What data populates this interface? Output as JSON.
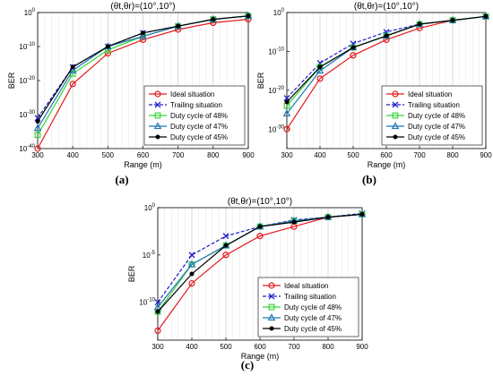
{
  "figure": {
    "captions": [
      "(a)",
      "(b)",
      "(c)"
    ]
  },
  "colors": {
    "Ideal situation": "#e31a1c",
    "Trailing situation": "#1f1fcc",
    "Duty cycle of 48%": "#39d339",
    "Duty cycle of 47%": "#1f78b4",
    "Duty cycle of 45%": "#000000"
  },
  "chart_data": [
    {
      "type": "line",
      "title": "(θt,θr)=(10°,10°)",
      "xlabel": "Range (m)",
      "ylabel": "BER",
      "x": [
        300,
        400,
        500,
        600,
        700,
        800,
        900
      ],
      "xlim": [
        300,
        900
      ],
      "yscale": "log",
      "ylim": [
        1e-40,
        1
      ],
      "yticks": [
        "10^-40",
        "10^-30",
        "10^-20",
        "10^-10",
        "10^0"
      ],
      "grid": "vertical minor",
      "legend": "bottom-right",
      "series": [
        {
          "name": "Ideal situation",
          "marker": "circle",
          "values": [
            1e-40,
            1e-21,
            1e-12,
            1e-08,
            1e-05,
            0.001,
            0.01
          ]
        },
        {
          "name": "Trailing situation",
          "marker": "x",
          "values": [
            1e-31,
            1e-16,
            1e-10,
            1e-06,
            0.0001,
            0.01,
            0.1
          ]
        },
        {
          "name": "Duty cycle of 48%",
          "marker": "square",
          "values": [
            1e-36,
            1e-18,
            1e-11,
            1e-07,
            0.0001,
            0.01,
            0.1
          ]
        },
        {
          "name": "Duty cycle of 47%",
          "marker": "triangle",
          "values": [
            1e-34,
            1e-17,
            1e-10,
            1e-07,
            0.0001,
            0.01,
            0.1
          ]
        },
        {
          "name": "Duty cycle of 45%",
          "marker": "dot",
          "values": [
            1e-32,
            1e-16,
            1e-10,
            1e-06,
            0.0001,
            0.01,
            0.1
          ]
        }
      ]
    },
    {
      "type": "line",
      "title": "(θt,θr)=(10°,10°)",
      "xlabel": "Range (m)",
      "ylabel": "BER",
      "x": [
        300,
        400,
        500,
        600,
        700,
        800,
        900
      ],
      "xlim": [
        300,
        900
      ],
      "yscale": "log",
      "ylim": [
        1e-35,
        1
      ],
      "yticks": [
        "10^-30",
        "10^-20",
        "10^-10",
        "10^0"
      ],
      "grid": "vertical minor",
      "legend": "bottom-right",
      "series": [
        {
          "name": "Ideal situation",
          "marker": "circle",
          "values": [
            1e-30,
            1e-17,
            1e-11,
            1e-07,
            0.0001,
            0.01,
            0.1
          ]
        },
        {
          "name": "Trailing situation",
          "marker": "x",
          "values": [
            1e-22,
            1e-13,
            1e-08,
            1e-05,
            0.001,
            0.01,
            0.1
          ]
        },
        {
          "name": "Duty cycle of 48%",
          "marker": "square",
          "values": [
            1e-24,
            1e-14,
            1e-09,
            1e-06,
            0.001,
            0.01,
            0.1
          ]
        },
        {
          "name": "Duty cycle of 47%",
          "marker": "triangle",
          "values": [
            1e-26,
            1e-15,
            1e-09,
            1e-06,
            0.001,
            0.01,
            0.1
          ]
        },
        {
          "name": "Duty cycle of 45%",
          "marker": "dot",
          "values": [
            1e-23,
            1e-14,
            1e-09,
            1e-06,
            0.001,
            0.01,
            0.1
          ]
        }
      ]
    },
    {
      "type": "line",
      "title": "(θt,θr)=(10°,10°)",
      "xlabel": "Range (m)",
      "ylabel": "BER",
      "x": [
        300,
        400,
        500,
        600,
        700,
        800,
        900
      ],
      "xlim": [
        300,
        900
      ],
      "yscale": "log",
      "ylim": [
        1e-14,
        1
      ],
      "yticks": [
        "10^-10",
        "10^-5",
        "10^0"
      ],
      "grid": "vertical minor",
      "legend": "bottom-right",
      "series": [
        {
          "name": "Ideal situation",
          "marker": "circle",
          "values": [
            1e-13,
            1e-08,
            1e-05,
            0.001,
            0.01,
            0.1,
            0.2
          ]
        },
        {
          "name": "Trailing situation",
          "marker": "x",
          "values": [
            1e-10,
            1e-05,
            0.001,
            0.01,
            0.05,
            0.1,
            0.25
          ]
        },
        {
          "name": "Duty cycle of 48%",
          "marker": "square",
          "values": [
            1e-11,
            1e-06,
            0.0001,
            0.01,
            0.04,
            0.1,
            0.2
          ]
        },
        {
          "name": "Duty cycle of 47%",
          "marker": "triangle",
          "values": [
            3e-11,
            1e-06,
            0.0001,
            0.01,
            0.04,
            0.1,
            0.2
          ]
        },
        {
          "name": "Duty cycle of 45%",
          "marker": "dot",
          "values": [
            1e-11,
            1e-07,
            0.0001,
            0.01,
            0.03,
            0.1,
            0.2
          ]
        }
      ]
    }
  ]
}
